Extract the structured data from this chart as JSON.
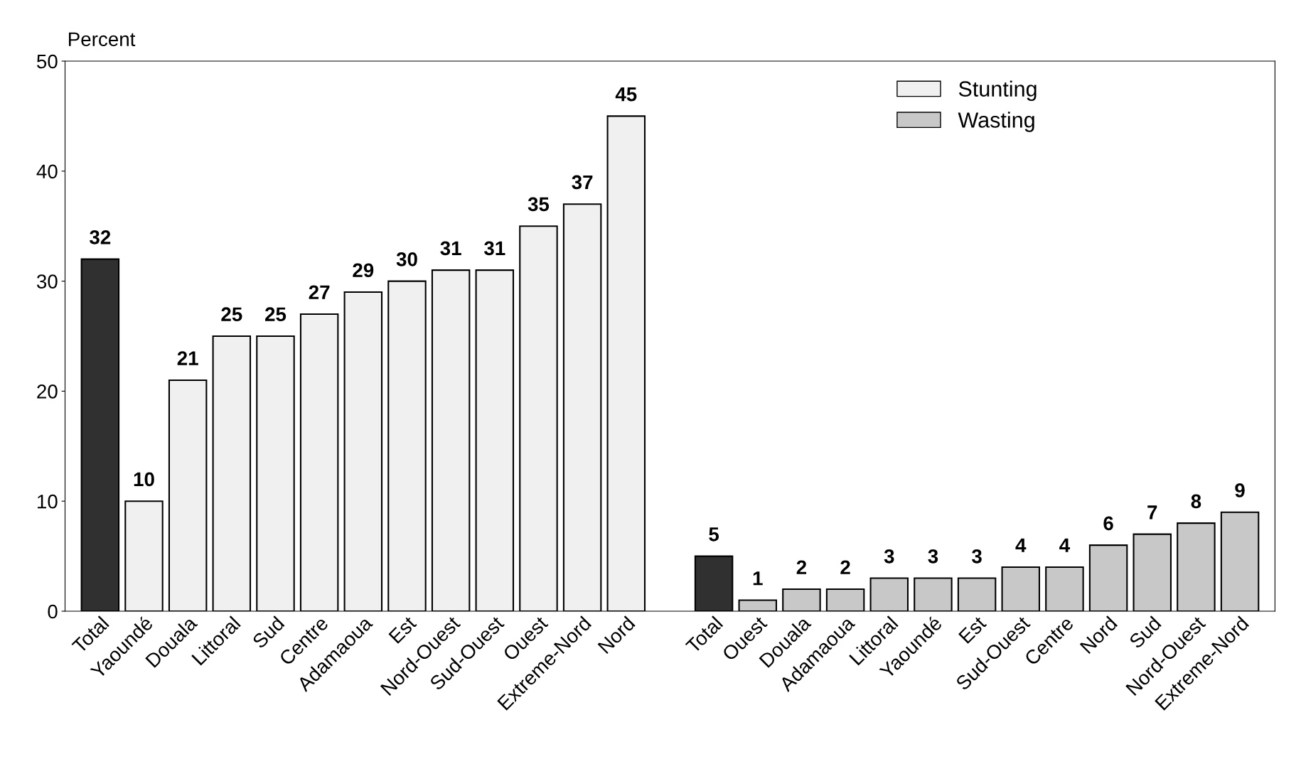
{
  "chart_data": {
    "type": "bar",
    "ylabel": "Percent",
    "categories": [
      "Total",
      "Yaoundé",
      "Douala",
      "Littoral",
      "Sud",
      "Centre",
      "Adamaoua",
      "Est",
      "Nord-Ouest",
      "Sud-Ouest",
      "Ouest",
      "Extreme-Nord",
      "Nord",
      null,
      "Total",
      "Ouest",
      "Douala",
      "Adamaoua",
      "Littoral",
      "Yaoundé",
      "Est",
      "Sud-Ouest",
      "Centre",
      "Nord",
      "Sud",
      "Nord-Ouest",
      "Extreme-Nord"
    ],
    "series": [
      {
        "name": "Stunting",
        "color": "#f0f0f0",
        "colors": [
          "#303030",
          "#f0f0f0",
          "#f0f0f0",
          "#f0f0f0",
          "#f0f0f0",
          "#f0f0f0",
          "#f0f0f0",
          "#f0f0f0",
          "#f0f0f0",
          "#f0f0f0",
          "#f0f0f0",
          "#f0f0f0",
          "#f0f0f0",
          null,
          null,
          null,
          null,
          null,
          null,
          null,
          null,
          null,
          null,
          null,
          null,
          null,
          null
        ],
        "values": [
          32,
          10,
          21,
          25,
          25,
          27,
          29,
          30,
          31,
          31,
          35,
          37,
          45,
          null,
          null,
          null,
          null,
          null,
          null,
          null,
          null,
          null,
          null,
          null,
          null,
          null,
          null
        ]
      },
      {
        "name": "Wasting",
        "color": "#c8c8c8",
        "colors": [
          null,
          null,
          null,
          null,
          null,
          null,
          null,
          null,
          null,
          null,
          null,
          null,
          null,
          null,
          "#303030",
          "#c8c8c8",
          "#c8c8c8",
          "#c8c8c8",
          "#c8c8c8",
          "#c8c8c8",
          "#c8c8c8",
          "#c8c8c8",
          "#c8c8c8",
          "#c8c8c8",
          "#c8c8c8",
          "#c8c8c8",
          "#c8c8c8"
        ],
        "values": [
          null,
          null,
          null,
          null,
          null,
          null,
          null,
          null,
          null,
          null,
          null,
          null,
          null,
          null,
          5,
          1,
          2,
          2,
          3,
          3,
          3,
          4,
          4,
          6,
          7,
          8,
          9
        ]
      }
    ],
    "ylim": [
      0,
      50
    ],
    "yticks": [
      0,
      10,
      20,
      30,
      40,
      50
    ],
    "data_labels": true,
    "legend": "top right",
    "grid": false
  }
}
